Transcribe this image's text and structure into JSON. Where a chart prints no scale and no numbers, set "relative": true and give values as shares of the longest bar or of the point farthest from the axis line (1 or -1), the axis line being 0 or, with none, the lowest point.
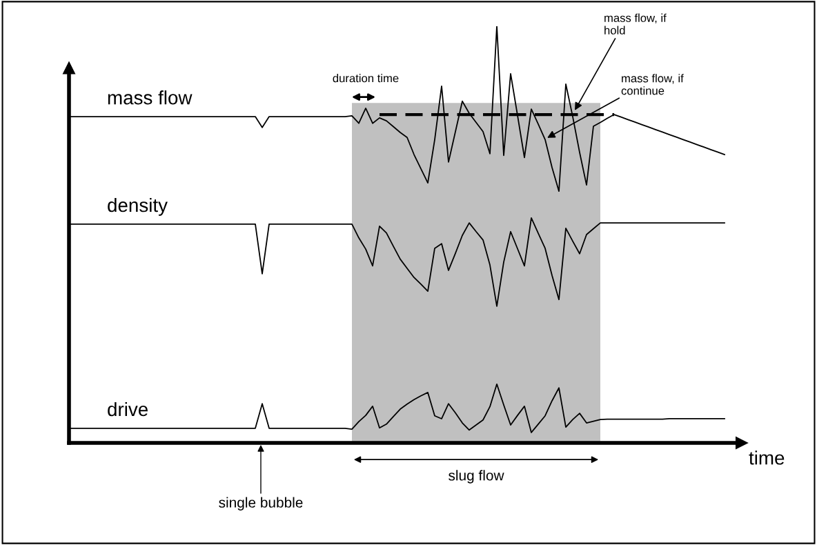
{
  "chart_data": {
    "type": "line",
    "relative": true,
    "xlabel": "time",
    "marker": "none",
    "categories": [
      null,
      null,
      null,
      null,
      null,
      null,
      null,
      null,
      null,
      null,
      null,
      null,
      null,
      null,
      null,
      null,
      null,
      null,
      null,
      null,
      null,
      null,
      null,
      null,
      null,
      null,
      null,
      null,
      null,
      null,
      null,
      null,
      null,
      null,
      null,
      null,
      null,
      null,
      null,
      null,
      null,
      null,
      null,
      null,
      null,
      null,
      null,
      null,
      null,
      null,
      null,
      null,
      null,
      null,
      null,
      null,
      null,
      null,
      null,
      null,
      null,
      null,
      null,
      null,
      null,
      null,
      null,
      null,
      null,
      null,
      null,
      null,
      null,
      null,
      null,
      null,
      null,
      null,
      null,
      null,
      null,
      null,
      null,
      null,
      null,
      null,
      null,
      null,
      null,
      null,
      null,
      null,
      null,
      null,
      null,
      null
    ],
    "series": [
      {
        "type": "area",
        "color": "#c0c0c0",
        "values": [
          null,
          null,
          null,
          null,
          null,
          null,
          null,
          null,
          null,
          null,
          null,
          null,
          null,
          null,
          null,
          null,
          null,
          null,
          null,
          null,
          null,
          null,
          null,
          null,
          null,
          null,
          null,
          null,
          null,
          null,
          null,
          null,
          null,
          null,
          null,
          null,
          null,
          null,
          null,
          null,
          null,
          0.816,
          0.816,
          0.816,
          0.816,
          0.816,
          0.816,
          0.816,
          0.816,
          0.816,
          0.816,
          0.816,
          0.816,
          0.816,
          0.816,
          0.816,
          0.816,
          0.816,
          0.816,
          0.816,
          0.816,
          0.816,
          0.816,
          0.816,
          0.816,
          0.816,
          0.816,
          0.816,
          0.816,
          0.816,
          0.816,
          0.816,
          0.816,
          0.816,
          0.816,
          0.816,
          0.816,
          0.816,
          null,
          null,
          null,
          null,
          null,
          null,
          null,
          null,
          null,
          null,
          null,
          null,
          null,
          null,
          null,
          null,
          null,
          null
        ]
      },
      {
        "name": "mass flow",
        "color": "#000000",
        "values": [
          0.783,
          0.783,
          0.783,
          0.783,
          0.783,
          0.783,
          0.783,
          0.783,
          0.783,
          0.783,
          0.783,
          0.783,
          0.783,
          0.783,
          0.783,
          0.783,
          0.783,
          0.783,
          0.783,
          0.783,
          0.783,
          0.783,
          0.783,
          0.783,
          0.783,
          0.783,
          0.783,
          0.783,
          0.757,
          0.783,
          0.783,
          0.783,
          0.783,
          0.783,
          0.783,
          0.783,
          0.783,
          0.783,
          0.783,
          0.783,
          0.783,
          0.785,
          0.767,
          0.803,
          0.767,
          0.78,
          0.773,
          0.759,
          0.745,
          0.733,
          0.692,
          0.658,
          0.624,
          0.728,
          0.856,
          0.674,
          0.747,
          0.82,
          0.791,
          0.769,
          0.747,
          0.694,
          1,
          0.69,
          0.886,
          0.786,
          0.685,
          0.801,
          0.765,
          0.728,
          0.661,
          0.604,
          0.861,
          0.783,
          0.697,
          0.619,
          0.76,
          0.769,
          0.779,
          0.788,
          0.782,
          0.776,
          0.77,
          0.764,
          0.758,
          0.752,
          0.746,
          0.74,
          0.734,
          0.728,
          0.722,
          0.716,
          0.71,
          0.704,
          0.698,
          0.692
        ]
      },
      {
        "color": "#000000",
        "line_style": "dashed",
        "values": [
          null,
          null,
          null,
          null,
          null,
          null,
          null,
          null,
          null,
          null,
          null,
          null,
          null,
          null,
          null,
          null,
          null,
          null,
          null,
          null,
          null,
          null,
          null,
          null,
          null,
          null,
          null,
          null,
          null,
          null,
          null,
          null,
          null,
          null,
          null,
          null,
          null,
          null,
          null,
          null,
          null,
          null,
          null,
          null,
          null,
          0.788,
          0.788,
          0.788,
          0.788,
          0.788,
          0.788,
          0.788,
          0.788,
          0.788,
          0.788,
          0.788,
          0.788,
          0.788,
          0.788,
          0.788,
          0.788,
          0.788,
          0.788,
          0.788,
          0.788,
          0.788,
          0.788,
          0.788,
          0.788,
          0.788,
          0.788,
          0.788,
          0.788,
          0.788,
          0.788,
          0.788,
          0.788,
          0.788,
          0.788,
          0.788,
          null,
          null,
          null,
          null,
          null,
          null,
          null,
          null,
          null,
          null,
          null,
          null,
          null,
          null,
          null,
          null
        ]
      },
      {
        "name": "density",
        "color": "#000000",
        "values": [
          0.525,
          0.525,
          0.525,
          0.525,
          0.525,
          0.525,
          0.525,
          0.525,
          0.525,
          0.525,
          0.525,
          0.525,
          0.525,
          0.525,
          0.525,
          0.525,
          0.525,
          0.525,
          0.525,
          0.525,
          0.525,
          0.525,
          0.525,
          0.525,
          0.525,
          0.525,
          0.525,
          0.525,
          0.406,
          0.525,
          0.525,
          0.525,
          0.525,
          0.525,
          0.525,
          0.525,
          0.525,
          0.525,
          0.525,
          0.525,
          0.525,
          0.525,
          0.492,
          0.465,
          0.425,
          0.52,
          0.504,
          0.472,
          0.441,
          0.419,
          0.397,
          0.381,
          0.364,
          0.467,
          0.478,
          0.414,
          0.455,
          0.498,
          0.528,
          0.507,
          0.487,
          0.427,
          0.328,
          0.434,
          0.507,
          0.466,
          0.425,
          0.54,
          0.503,
          0.467,
          0.402,
          0.344,
          0.515,
          0.484,
          0.454,
          0.5,
          0.514,
          0.528,
          0.528,
          0.528,
          0.528,
          0.528,
          0.528,
          0.528,
          0.528,
          0.528,
          0.528,
          0.528,
          0.528,
          0.528,
          0.528,
          0.528,
          0.528,
          0.528,
          0.528,
          0.528
        ]
      },
      {
        "name": "drive",
        "color": "#000000",
        "values": [
          0.035,
          0.035,
          0.035,
          0.035,
          0.035,
          0.035,
          0.035,
          0.035,
          0.035,
          0.035,
          0.035,
          0.035,
          0.035,
          0.035,
          0.035,
          0.035,
          0.035,
          0.035,
          0.035,
          0.035,
          0.035,
          0.035,
          0.035,
          0.035,
          0.035,
          0.035,
          0.035,
          0.035,
          0.094,
          0.035,
          0.035,
          0.035,
          0.035,
          0.035,
          0.035,
          0.035,
          0.035,
          0.035,
          0.035,
          0.035,
          0.035,
          0.033,
          0.051,
          0.066,
          0.088,
          0.036,
          0.045,
          0.063,
          0.081,
          0.093,
          0.104,
          0.113,
          0.121,
          0.065,
          0.058,
          0.094,
          0.072,
          0.048,
          0.031,
          0.043,
          0.055,
          0.087,
          0.141,
          0.091,
          0.043,
          0.066,
          0.088,
          0.025,
          0.045,
          0.065,
          0.101,
          0.132,
          0.038,
          0.056,
          0.071,
          0.048,
          0.052,
          0.056,
          0.057,
          0.057,
          0.057,
          0.057,
          0.057,
          0.057,
          0.057,
          0.057,
          0.057,
          0.058,
          0.058,
          0.058,
          0.058,
          0.058,
          0.058,
          0.058,
          0.058,
          0.058
        ]
      }
    ],
    "annotations": [
      "duration time",
      "single bubble",
      "mass flow, if\nhold",
      "mass flow, if\ncontinue",
      "slug flow"
    ]
  }
}
